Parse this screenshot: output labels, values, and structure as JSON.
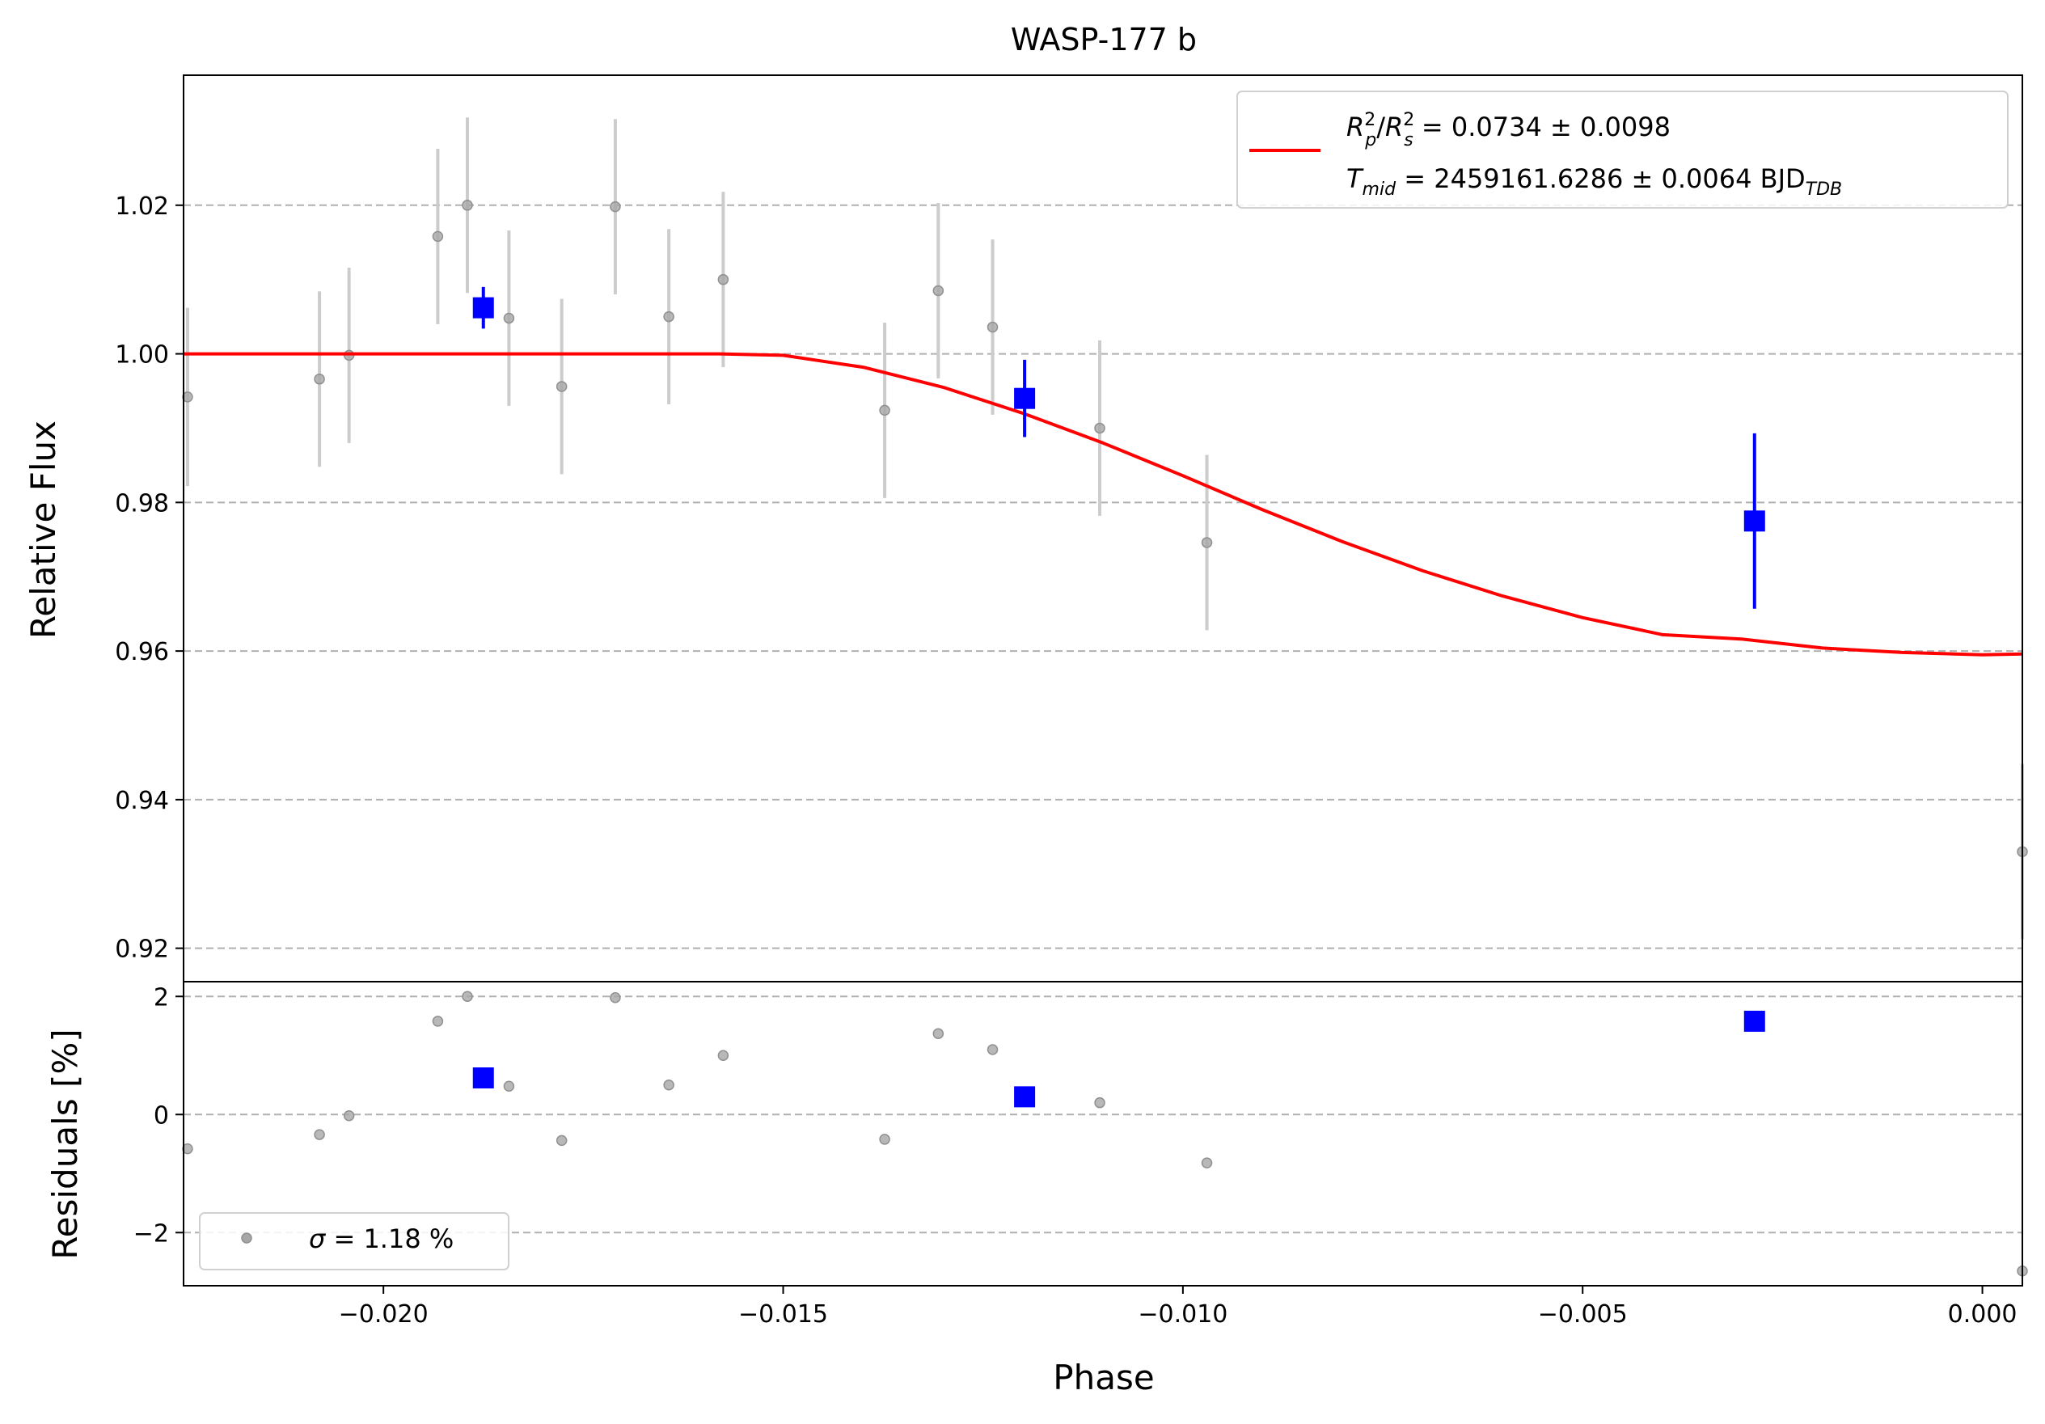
{
  "chart_data": [
    {
      "type": "scatter",
      "title": "WASP-177 b",
      "xlabel": "",
      "ylabel": "Relative Flux",
      "xlim": [
        -0.0225,
        0.0005
      ],
      "ylim": [
        0.9155,
        1.0375
      ],
      "grid": "y-dashed",
      "x_ticks": [
        -0.02,
        -0.015,
        -0.01,
        -0.005,
        0.0
      ],
      "y_ticks": [
        0.92,
        0.94,
        0.96,
        0.98,
        1.0,
        1.02
      ],
      "y_tick_labels": [
        "0.92",
        "0.94",
        "0.96",
        "0.98",
        "1.00",
        "1.02"
      ],
      "legend": {
        "placement": "top-right",
        "entries": [
          "R_p^2/R_s^2 = 0.0734 ± 0.0098",
          "T_mid = 2459161.6286 ± 0.0064 BJD_TDB"
        ]
      },
      "legend_text": {
        "r_p": "R",
        "r_p_sup": "2",
        "r_p_sub": "p",
        "slash": "/",
        "r_s": "R",
        "r_s_sup": "2",
        "r_s_sub": "s",
        "depth_value": " = 0.0734 ± 0.0098",
        "t": "T",
        "t_sub": "mid",
        "tmid_value": " = 2459161.6286 ± 0.0064 BJD",
        "tdb_sub": "TDB"
      },
      "series": [
        {
          "kind": "raw-data",
          "color": "#a6a6a6",
          "points": [
            {
              "x": -0.02245,
              "y": 0.9942,
              "err": 0.012
            },
            {
              "x": -0.0208,
              "y": 0.9966,
              "err": 0.0118
            },
            {
              "x": -0.02043,
              "y": 0.9998,
              "err": 0.0118
            },
            {
              "x": -0.01932,
              "y": 1.0158,
              "err": 0.0118
            },
            {
              "x": -0.01895,
              "y": 1.02,
              "err": 0.0118
            },
            {
              "x": -0.01843,
              "y": 1.0048,
              "err": 0.0118
            },
            {
              "x": -0.01777,
              "y": 0.9956,
              "err": 0.0118
            },
            {
              "x": -0.0171,
              "y": 1.0198,
              "err": 0.0118
            },
            {
              "x": -0.01643,
              "y": 1.005,
              "err": 0.0118
            },
            {
              "x": -0.01575,
              "y": 1.01,
              "err": 0.0118
            },
            {
              "x": -0.01373,
              "y": 0.9924,
              "err": 0.0118
            },
            {
              "x": -0.01306,
              "y": 1.0085,
              "err": 0.0118
            },
            {
              "x": -0.01238,
              "y": 1.0036,
              "err": 0.0118
            },
            {
              "x": -0.01104,
              "y": 0.99,
              "err": 0.0118
            },
            {
              "x": -0.0097,
              "y": 0.9746,
              "err": 0.0118
            },
            {
              "x": 0.0005,
              "y": 0.933,
              "err": 0.0118
            }
          ]
        },
        {
          "kind": "binned-data",
          "color": "#0000ff",
          "points": [
            {
              "x": -0.01875,
              "y": 1.0062,
              "err": 0.0028
            },
            {
              "x": -0.01198,
              "y": 0.994,
              "err": 0.0052
            },
            {
              "x": -0.00285,
              "y": 0.9775,
              "err": 0.0118
            }
          ]
        },
        {
          "kind": "model",
          "name": "R_p^2/R_s^2 = 0.0734 ± 0.0098; T_mid = 2459161.6286 ± 0.0064 BJD_TDB",
          "color": "#ff0000",
          "points": [
            {
              "x": -0.0225,
              "y": 1.0
            },
            {
              "x": -0.0158,
              "y": 1.0
            },
            {
              "x": -0.015,
              "y": 0.9998
            },
            {
              "x": -0.014,
              "y": 0.9982
            },
            {
              "x": -0.013,
              "y": 0.9955
            },
            {
              "x": -0.012,
              "y": 0.992
            },
            {
              "x": -0.011,
              "y": 0.988
            },
            {
              "x": -0.01,
              "y": 0.9836
            },
            {
              "x": -0.009,
              "y": 0.979
            },
            {
              "x": -0.008,
              "y": 0.9747
            },
            {
              "x": -0.007,
              "y": 0.9708
            },
            {
              "x": -0.006,
              "y": 0.9674
            },
            {
              "x": -0.005,
              "y": 0.9645
            },
            {
              "x": -0.004,
              "y": 0.9622
            },
            {
              "x": -0.003,
              "y": 0.9616
            },
            {
              "x": -0.002,
              "y": 0.9604
            },
            {
              "x": -0.001,
              "y": 0.9598
            },
            {
              "x": 0.0,
              "y": 0.9595
            },
            {
              "x": 0.0005,
              "y": 0.9596
            }
          ]
        }
      ]
    },
    {
      "type": "scatter",
      "title": "",
      "xlabel": "Phase",
      "ylabel": "Residuals [%]",
      "xlim": [
        -0.0225,
        0.0005
      ],
      "ylim": [
        -2.9,
        2.25
      ],
      "grid": "y-dashed",
      "x_ticks": [
        -0.02,
        -0.015,
        -0.01,
        -0.005,
        0.0
      ],
      "x_tick_labels": [
        "−0.020",
        "−0.015",
        "−0.010",
        "−0.005",
        "0.000"
      ],
      "y_ticks": [
        -2,
        0,
        2
      ],
      "y_tick_labels": [
        "−2",
        "0",
        "2"
      ],
      "legend": {
        "placement": "bottom-left",
        "entries": [
          "σ = 1.18 %"
        ]
      },
      "legend_text": {
        "sigma": "σ",
        "sigma_value": " = 1.18 %"
      },
      "series": [
        {
          "kind": "raw-residuals",
          "color": "#a6a6a6",
          "points": [
            {
              "x": -0.02245,
              "y": -0.58
            },
            {
              "x": -0.0208,
              "y": -0.34
            },
            {
              "x": -0.02043,
              "y": -0.02
            },
            {
              "x": -0.01932,
              "y": 1.58
            },
            {
              "x": -0.01895,
              "y": 2.0
            },
            {
              "x": -0.01843,
              "y": 0.48
            },
            {
              "x": -0.01777,
              "y": -0.44
            },
            {
              "x": -0.0171,
              "y": 1.98
            },
            {
              "x": -0.01643,
              "y": 0.5
            },
            {
              "x": -0.01575,
              "y": 1.0
            },
            {
              "x": -0.01373,
              "y": -0.42
            },
            {
              "x": -0.01306,
              "y": 1.37
            },
            {
              "x": -0.01238,
              "y": 1.1
            },
            {
              "x": -0.01104,
              "y": 0.2
            },
            {
              "x": -0.0097,
              "y": -0.82
            },
            {
              "x": 0.0005,
              "y": -2.65
            }
          ]
        },
        {
          "kind": "binned-residuals",
          "color": "#0000ff",
          "points": [
            {
              "x": -0.01875,
              "y": 0.62
            },
            {
              "x": -0.01198,
              "y": 0.3
            },
            {
              "x": -0.00285,
              "y": 1.58
            }
          ]
        }
      ]
    }
  ]
}
